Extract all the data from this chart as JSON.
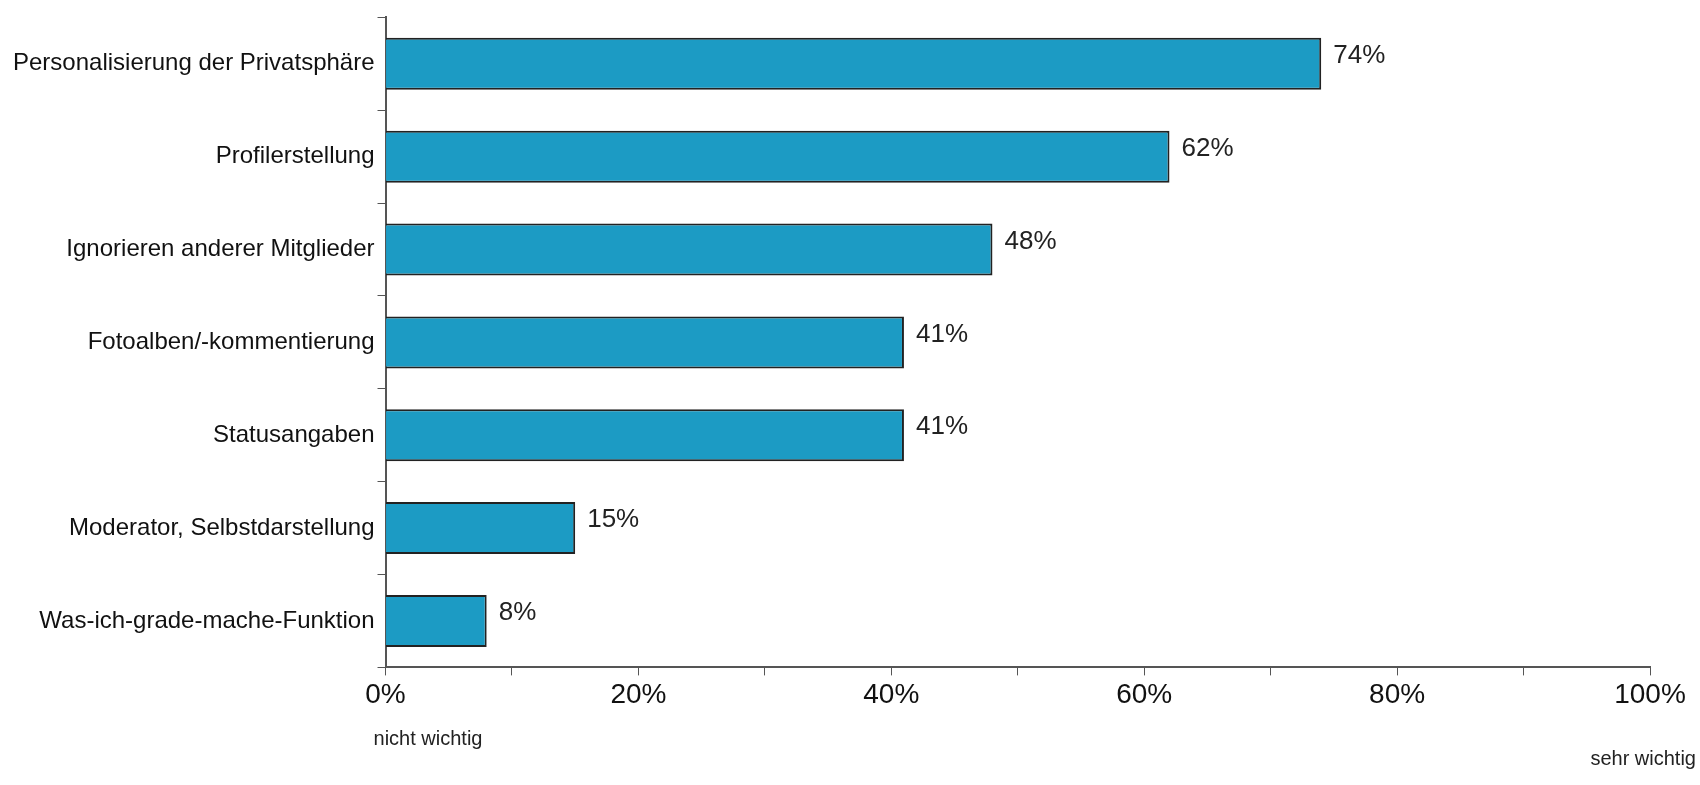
{
  "chart_data": {
    "type": "bar",
    "orientation": "horizontal",
    "categories": [
      "Personalisierung der Privatsphäre",
      "Profilerstellung",
      "Ignorieren anderer Mitglieder",
      "Fotoalben/-kommentierung",
      "Statusangaben",
      "Moderator, Selbstdarstellung",
      "Was-ich-grade-mache-Funktion"
    ],
    "values": [
      74,
      62,
      48,
      41,
      41,
      15,
      8
    ],
    "value_labels": [
      "74%",
      "62%",
      "48%",
      "41%",
      "41%",
      "15%",
      "8%"
    ],
    "color": "#1c9bc4",
    "xlim": [
      0,
      100
    ],
    "xticks": [
      {
        "value": 0,
        "label": "0%"
      },
      {
        "value": 10,
        "label": null
      },
      {
        "value": 20,
        "label": "20%"
      },
      {
        "value": 30,
        "label": null
      },
      {
        "value": 40,
        "label": "40%"
      },
      {
        "value": 50,
        "label": null
      },
      {
        "value": 60,
        "label": "60%"
      },
      {
        "value": 70,
        "label": null
      },
      {
        "value": 80,
        "label": "80%"
      },
      {
        "value": 90,
        "label": null
      },
      {
        "value": 100,
        "label": "100%"
      }
    ],
    "grid": false,
    "legend": false,
    "annotations": [
      "nicht wichtig",
      "sehr wichtig"
    ]
  }
}
